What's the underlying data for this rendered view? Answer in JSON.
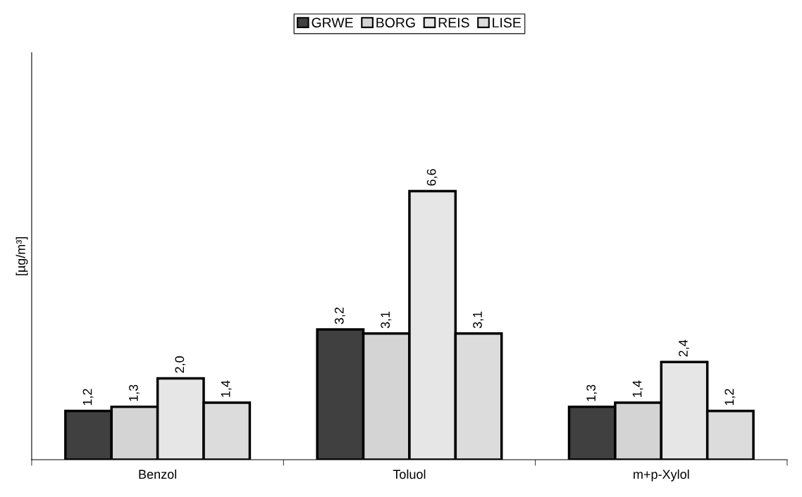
{
  "chart_data": {
    "type": "bar",
    "ylabel": "[µg/m³]",
    "categories": [
      "Benzol",
      "Toluol",
      "m+p-Xylol"
    ],
    "series": [
      {
        "name": "GRWE",
        "color": "#404040",
        "values": [
          1.2,
          3.2,
          1.3
        ],
        "value_labels": [
          "1,2",
          "3,2",
          "1,3"
        ]
      },
      {
        "name": "BORG",
        "color": "#d4d4d4",
        "values": [
          1.3,
          3.1,
          1.4
        ],
        "value_labels": [
          "1,3",
          "3,1",
          "1,4"
        ]
      },
      {
        "name": "REIS",
        "color": "#e6e6e6",
        "values": [
          2.0,
          6.6,
          2.4
        ],
        "value_labels": [
          "2,0",
          "6,6",
          "2,4"
        ]
      },
      {
        "name": "LISE",
        "color": "#dcdcdc",
        "values": [
          1.4,
          3.1,
          1.2
        ],
        "value_labels": [
          "1,4",
          "3,1",
          "1,2"
        ]
      }
    ],
    "ylim": [
      0,
      10
    ],
    "tick_labels": "x",
    "grid": false,
    "legend": "top"
  }
}
